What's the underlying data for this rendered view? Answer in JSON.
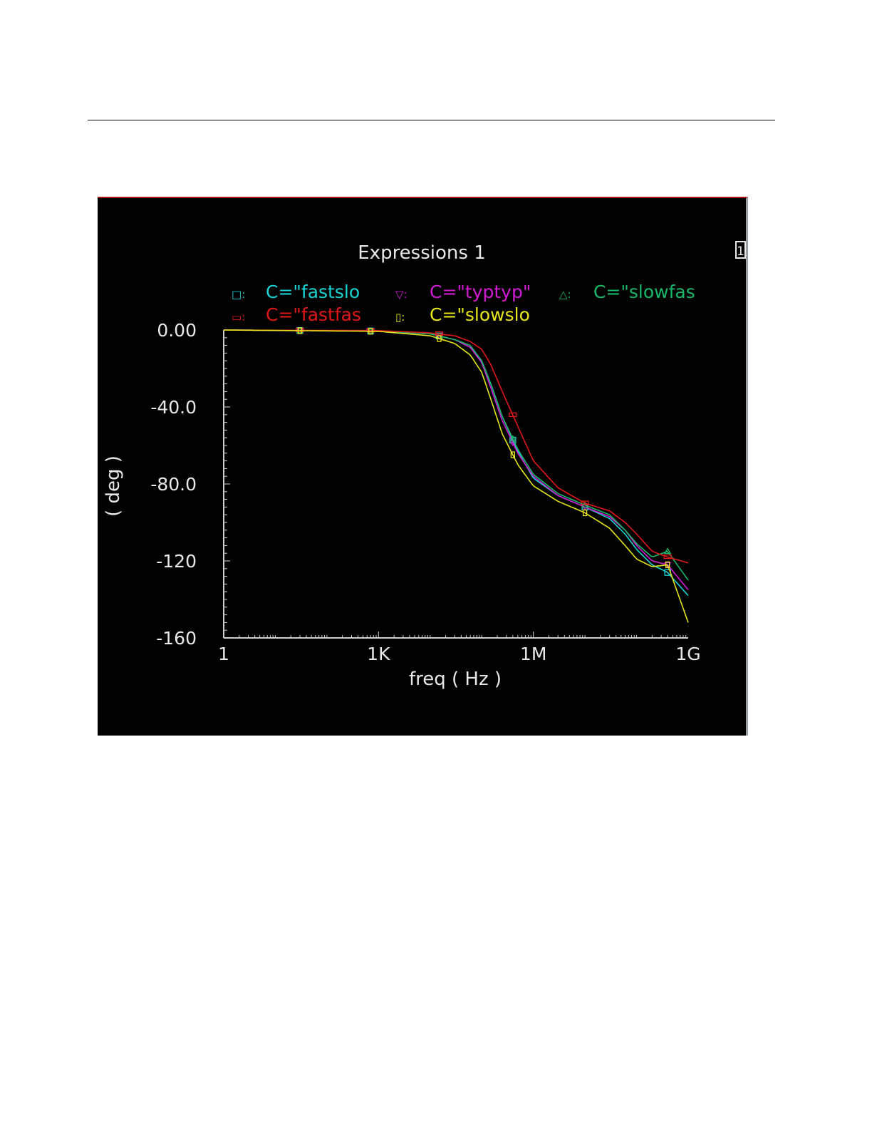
{
  "chart_data": {
    "type": "line",
    "title": "Expressions 1",
    "badge": "1",
    "xlabel": "freq ( Hz )",
    "ylabel": "( deg )",
    "x_scale": "log",
    "xlim": [
      1,
      1000000000
    ],
    "ylim": [
      -160,
      0
    ],
    "y_ticks": [
      {
        "value": 0,
        "label": "0.00"
      },
      {
        "value": -40,
        "label": "-40.0"
      },
      {
        "value": -80,
        "label": "-80.0"
      },
      {
        "value": -120,
        "label": "-120"
      },
      {
        "value": -160,
        "label": "-160"
      }
    ],
    "x_ticks": [
      {
        "value": 1,
        "label": "1"
      },
      {
        "value": 1000,
        "label": "1K"
      },
      {
        "value": 1000000,
        "label": "1M"
      },
      {
        "value": 1000000000,
        "label": "1G"
      }
    ],
    "legend_placement": "top",
    "series": [
      {
        "name": "C=\"fastslo",
        "marker_glyph": "□",
        "color": "#18d4d4",
        "x": [
          1,
          1000,
          10000,
          30000,
          60000,
          100000,
          150000,
          250000,
          500000,
          1000000,
          3000000,
          10000000,
          30000000,
          60000000,
          100000000,
          200000000,
          400000000,
          1000000000
        ],
        "y": [
          0,
          -0.5,
          -2,
          -5,
          -9,
          -16,
          -28,
          -45,
          -63,
          -77,
          -86,
          -92,
          -98,
          -106,
          -114,
          -122,
          -126,
          -138
        ],
        "marker_x": [
          30,
          700,
          15000,
          400000,
          10000000,
          400000000
        ]
      },
      {
        "name": "C=\"typtyp\"",
        "marker_glyph": "▽",
        "color": "#d41ad4",
        "x": [
          1,
          1000,
          10000,
          30000,
          60000,
          100000,
          150000,
          250000,
          500000,
          1000000,
          3000000,
          10000000,
          30000000,
          60000000,
          100000000,
          200000000,
          400000000,
          1000000000
        ],
        "y": [
          0,
          -0.5,
          -2,
          -5,
          -9,
          -17,
          -30,
          -47,
          -64,
          -76,
          -86,
          -92,
          -97,
          -104,
          -112,
          -120,
          -122,
          -135
        ],
        "marker_x": [
          30,
          700,
          15000,
          400000,
          10000000,
          400000000
        ]
      },
      {
        "name": "C=\"slowfas",
        "marker_glyph": "△",
        "color": "#19b86a",
        "x": [
          1,
          1000,
          10000,
          30000,
          60000,
          100000,
          150000,
          250000,
          500000,
          1000000,
          3000000,
          10000000,
          30000000,
          60000000,
          100000000,
          200000000,
          400000000,
          1000000000
        ],
        "y": [
          0,
          -0.5,
          -2,
          -5,
          -8,
          -16,
          -28,
          -45,
          -62,
          -75,
          -85,
          -91,
          -96,
          -104,
          -111,
          -118,
          -115,
          -130
        ],
        "marker_x": [
          30,
          700,
          15000,
          400000,
          10000000,
          400000000
        ]
      },
      {
        "name": "C=\"fastfas",
        "marker_glyph": "▭",
        "color": "#e01818",
        "x": [
          1,
          1000,
          10000,
          30000,
          60000,
          100000,
          150000,
          250000,
          500000,
          1000000,
          3000000,
          10000000,
          30000000,
          60000000,
          100000000,
          200000000,
          400000000,
          1000000000
        ],
        "y": [
          0,
          -0.3,
          -1.5,
          -3,
          -6,
          -10,
          -18,
          -32,
          -50,
          -68,
          -82,
          -90,
          -94,
          -100,
          -106,
          -115,
          -118,
          -121
        ],
        "marker_x": [
          30,
          700,
          15000,
          400000,
          10000000,
          400000000
        ]
      },
      {
        "name": "C=\"slowslo",
        "marker_glyph": "▯",
        "color": "#e6e61a",
        "x": [
          1,
          1000,
          10000,
          30000,
          60000,
          100000,
          150000,
          250000,
          500000,
          1000000,
          3000000,
          10000000,
          30000000,
          60000000,
          100000000,
          200000000,
          400000000,
          1000000000
        ],
        "y": [
          0,
          -0.7,
          -3,
          -7,
          -13,
          -22,
          -36,
          -54,
          -70,
          -81,
          -89,
          -95,
          -103,
          -112,
          -119,
          -123,
          -122,
          -152
        ],
        "marker_x": [
          30,
          700,
          15000,
          400000,
          10000000,
          400000000
        ]
      }
    ]
  }
}
